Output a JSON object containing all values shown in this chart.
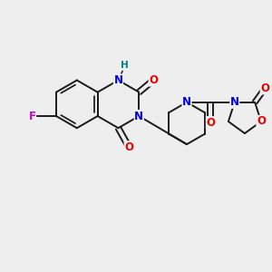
{
  "bg_color": "#eeeeee",
  "bond_color": "#1a1a1a",
  "atom_colors": {
    "N": "#0000ee",
    "O": "#ee0000",
    "F": "#cc00cc",
    "H": "#008080",
    "C": "#1a1a1a"
  },
  "bond_width": 1.4,
  "figsize": [
    3.0,
    3.0
  ],
  "dpi": 100,
  "xlim": [
    0,
    10
  ],
  "ylim": [
    0,
    10
  ]
}
